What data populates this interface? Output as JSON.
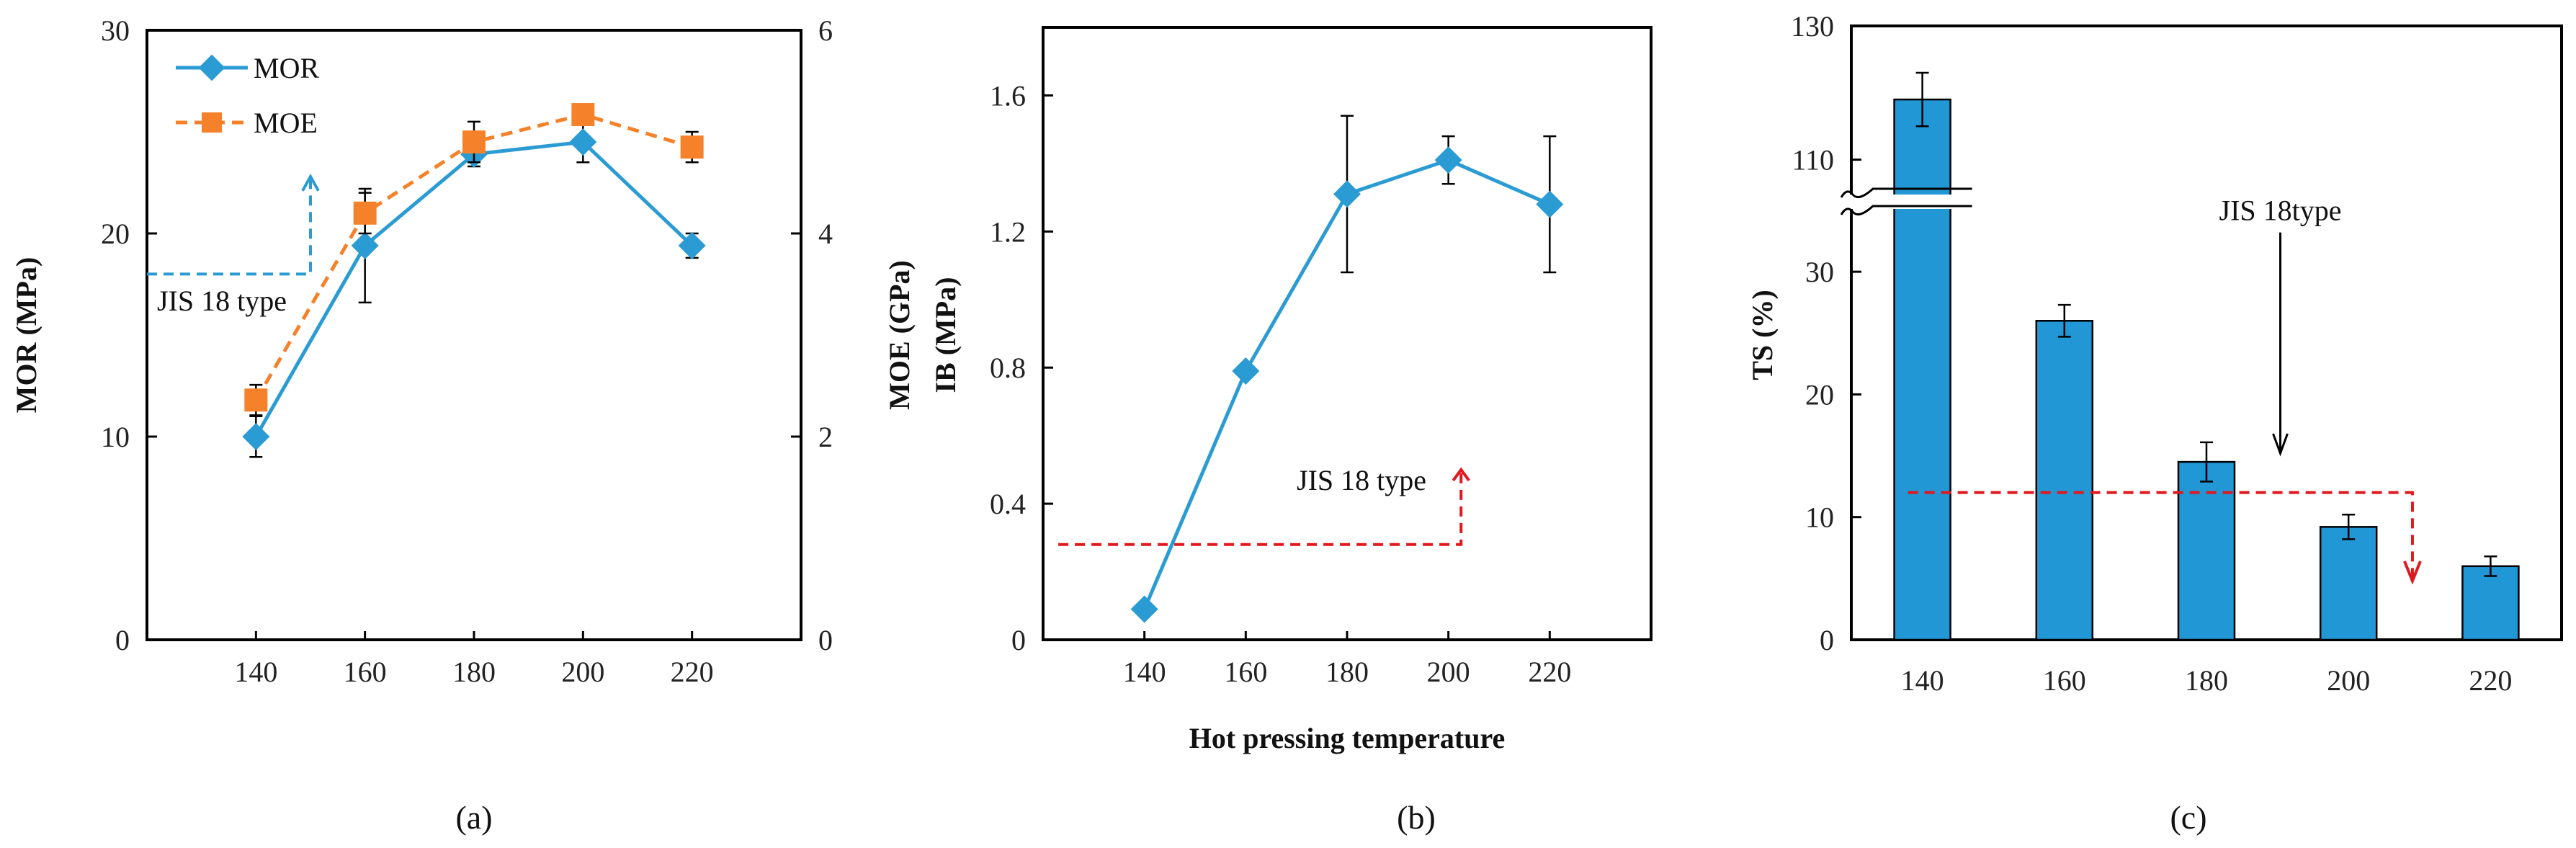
{
  "charts": [
    {
      "panel_label": "(a)",
      "chart_data": {
        "type": "line",
        "categories": [
          "140",
          "160",
          "180",
          "200",
          "220"
        ],
        "x": [
          140,
          160,
          180,
          200,
          220
        ],
        "xlim": [
          120,
          240
        ],
        "left_axis": {
          "label": "MOR (MPa)",
          "ylim": [
            0,
            30
          ],
          "ticks": [
            "0",
            "10",
            "20",
            "30"
          ]
        },
        "right_axis": {
          "label": "MOE (GPa)",
          "ylim": [
            0,
            6
          ],
          "ticks": [
            "0",
            "2",
            "4",
            "6"
          ]
        },
        "series": [
          {
            "name": "MOR",
            "axis": "left",
            "marker": "diamond",
            "line": "solid",
            "color": "#2b9bd4",
            "values": [
              10.0,
              19.4,
              23.9,
              24.5,
              19.4
            ],
            "err": [
              1.0,
              2.8,
              0.6,
              1.0,
              0.6
            ]
          },
          {
            "name": "MOE",
            "axis": "right",
            "marker": "square",
            "line": "dashed",
            "color": "#f5822a",
            "values": [
              2.36,
              4.2,
              4.9,
              5.17,
              4.85
            ],
            "err": [
              0.15,
              0.2,
              0.2,
              0.1,
              0.15
            ]
          }
        ],
        "reference": {
          "label": "JIS 18 type",
          "axis": "left",
          "value": 18,
          "color": "#2b9bd4"
        },
        "legend": [
          "MOR",
          "MOE"
        ],
        "legend_position": "top-left"
      }
    },
    {
      "panel_label": "(b)",
      "chart_data": {
        "type": "line",
        "categories": [
          "140",
          "160",
          "180",
          "200",
          "220"
        ],
        "x": [
          140,
          160,
          180,
          200,
          220
        ],
        "xlim": [
          120,
          240
        ],
        "xlabel": "Hot pressing temperature",
        "ylabel": "IB (MPa)",
        "ylim": [
          0,
          1.8
        ],
        "yticks": [
          "0",
          "0.4",
          "0.8",
          "1.2",
          "1.6"
        ],
        "series": [
          {
            "name": "IB",
            "marker": "diamond",
            "line": "solid",
            "color": "#2b9bd4",
            "values": [
              0.09,
              0.79,
              1.31,
              1.41,
              1.28
            ],
            "err": [
              0,
              0,
              0.23,
              0.07,
              0.2
            ]
          }
        ],
        "reference": {
          "label": "JIS 18 type",
          "value": 0.28,
          "color": "#e0191f"
        }
      }
    },
    {
      "panel_label": "(c)",
      "chart_data": {
        "type": "bar",
        "categories": [
          "140",
          "160",
          "180",
          "200",
          "220"
        ],
        "ylabel": "TS (%)",
        "ylim": [
          0,
          130
        ],
        "axis_break": [
          35,
          105
        ],
        "yticks": [
          "0",
          "10",
          "20",
          "30",
          "110",
          "130"
        ],
        "series": [
          {
            "name": "TS",
            "color": "#2197d6",
            "values": [
              119,
              26,
              14.5,
              9.2,
              6
            ],
            "err": [
              4,
              1.3,
              1.6,
              1.0,
              0.8
            ]
          }
        ],
        "reference": {
          "label": "JIS 18type",
          "value": 12,
          "color": "#e0191f"
        }
      }
    }
  ]
}
